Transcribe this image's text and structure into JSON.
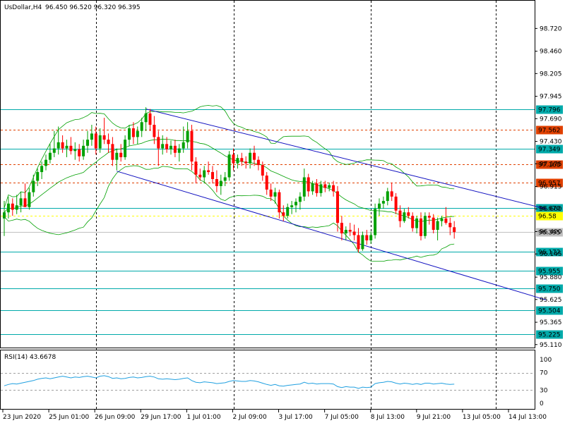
{
  "header": {
    "symbol": "UsDollar,H4",
    "ohlc": "96.450 96.520 96.320 96.395"
  },
  "rsi_header": "RSI(14) 43.6678",
  "colors": {
    "bull": "#00a000",
    "bear": "#ff0000",
    "hline": "#00aaaa",
    "hline_dashed": "#e04000",
    "channel": "#1010c0",
    "bollinger": "#00a000",
    "rsi_line": "#20a0e0",
    "current_price": "#ffff00"
  },
  "chart_data": [
    {
      "type": "candlestick",
      "title": "UsDollar,H4",
      "ylim": [
        95.1,
        98.9
      ],
      "y_ticks": [
        "98.720",
        "98.460",
        "98.205",
        "97.945",
        "97.690",
        "97.430",
        "97.175",
        "96.915",
        "96.660",
        "96.400",
        "96.145",
        "95.880",
        "95.625",
        "95.365",
        "95.110"
      ],
      "x_tick_labels": [
        "23 Jun 2020",
        "25 Jun 01:00",
        "26 Jun 09:00",
        "29 Jun 17:00",
        "1 Jul 01:00",
        "2 Jul 09:00",
        "3 Jul 17:00",
        "7 Jul 05:00",
        "8 Jul 13:00",
        "9 Jul 21:00",
        "13 Jul 05:00",
        "14 Jul 13:00"
      ],
      "session_separators_at_index": [
        22,
        55,
        88,
        118
      ],
      "candles": [
        {
          "o": 96.55,
          "h": 96.75,
          "l": 96.35,
          "c": 96.62
        },
        {
          "o": 96.62,
          "h": 96.8,
          "l": 96.55,
          "c": 96.72
        },
        {
          "o": 96.72,
          "h": 96.78,
          "l": 96.58,
          "c": 96.65
        },
        {
          "o": 96.65,
          "h": 96.82,
          "l": 96.6,
          "c": 96.7
        },
        {
          "o": 96.7,
          "h": 96.85,
          "l": 96.62,
          "c": 96.78
        },
        {
          "o": 96.78,
          "h": 96.95,
          "l": 96.7,
          "c": 96.68
        },
        {
          "o": 96.68,
          "h": 96.9,
          "l": 96.65,
          "c": 96.85
        },
        {
          "o": 96.85,
          "h": 97.05,
          "l": 96.8,
          "c": 96.98
        },
        {
          "o": 96.98,
          "h": 97.12,
          "l": 96.92,
          "c": 97.08
        },
        {
          "o": 97.08,
          "h": 97.2,
          "l": 97.0,
          "c": 97.15
        },
        {
          "o": 97.15,
          "h": 97.28,
          "l": 97.1,
          "c": 97.22
        },
        {
          "o": 97.22,
          "h": 97.4,
          "l": 97.18,
          "c": 97.3
        },
        {
          "o": 97.3,
          "h": 97.55,
          "l": 97.25,
          "c": 97.35
        },
        {
          "o": 97.35,
          "h": 97.6,
          "l": 97.28,
          "c": 97.42
        },
        {
          "o": 97.42,
          "h": 97.5,
          "l": 97.3,
          "c": 97.35
        },
        {
          "o": 97.35,
          "h": 97.45,
          "l": 97.25,
          "c": 97.38
        },
        {
          "o": 97.38,
          "h": 97.48,
          "l": 97.28,
          "c": 97.32
        },
        {
          "o": 97.32,
          "h": 97.42,
          "l": 97.22,
          "c": 97.34
        },
        {
          "o": 97.34,
          "h": 97.4,
          "l": 97.2,
          "c": 97.26
        },
        {
          "o": 97.26,
          "h": 97.45,
          "l": 97.22,
          "c": 97.38
        },
        {
          "o": 97.38,
          "h": 97.55,
          "l": 97.3,
          "c": 97.45
        },
        {
          "o": 97.45,
          "h": 97.62,
          "l": 97.38,
          "c": 97.52
        },
        {
          "o": 97.52,
          "h": 97.6,
          "l": 97.28,
          "c": 97.35
        },
        {
          "o": 97.35,
          "h": 97.58,
          "l": 97.3,
          "c": 97.5
        },
        {
          "o": 97.5,
          "h": 97.7,
          "l": 97.4,
          "c": 97.45
        },
        {
          "o": 97.45,
          "h": 97.52,
          "l": 97.3,
          "c": 97.4
        },
        {
          "o": 97.4,
          "h": 97.48,
          "l": 97.15,
          "c": 97.22
        },
        {
          "o": 97.22,
          "h": 97.35,
          "l": 97.1,
          "c": 97.3
        },
        {
          "o": 97.3,
          "h": 97.4,
          "l": 97.2,
          "c": 97.25
        },
        {
          "o": 97.25,
          "h": 97.5,
          "l": 97.22,
          "c": 97.45
        },
        {
          "o": 97.45,
          "h": 97.62,
          "l": 97.38,
          "c": 97.58
        },
        {
          "o": 97.58,
          "h": 97.65,
          "l": 97.4,
          "c": 97.48
        },
        {
          "o": 97.48,
          "h": 97.6,
          "l": 97.4,
          "c": 97.55
        },
        {
          "o": 97.55,
          "h": 97.7,
          "l": 97.48,
          "c": 97.65
        },
        {
          "o": 97.65,
          "h": 97.82,
          "l": 97.55,
          "c": 97.75
        },
        {
          "o": 97.75,
          "h": 97.8,
          "l": 97.55,
          "c": 97.62
        },
        {
          "o": 97.62,
          "h": 97.72,
          "l": 97.4,
          "c": 97.48
        },
        {
          "o": 97.48,
          "h": 97.55,
          "l": 97.15,
          "c": 97.35
        },
        {
          "o": 97.35,
          "h": 97.5,
          "l": 97.28,
          "c": 97.4
        },
        {
          "o": 97.4,
          "h": 97.48,
          "l": 97.3,
          "c": 97.34
        },
        {
          "o": 97.34,
          "h": 97.44,
          "l": 97.28,
          "c": 97.38
        },
        {
          "o": 97.38,
          "h": 97.45,
          "l": 97.25,
          "c": 97.3
        },
        {
          "o": 97.3,
          "h": 97.4,
          "l": 97.2,
          "c": 97.35
        },
        {
          "o": 97.35,
          "h": 97.6,
          "l": 97.3,
          "c": 97.42
        },
        {
          "o": 97.42,
          "h": 97.65,
          "l": 97.35,
          "c": 97.55
        },
        {
          "o": 97.55,
          "h": 97.62,
          "l": 97.1,
          "c": 97.2
        },
        {
          "o": 97.2,
          "h": 97.25,
          "l": 96.95,
          "c": 97.05
        },
        {
          "o": 97.05,
          "h": 97.12,
          "l": 96.98,
          "c": 97.02
        },
        {
          "o": 97.02,
          "h": 97.15,
          "l": 96.95,
          "c": 97.1
        },
        {
          "o": 97.1,
          "h": 97.2,
          "l": 97.05,
          "c": 97.08
        },
        {
          "o": 97.08,
          "h": 97.15,
          "l": 96.95,
          "c": 97.0
        },
        {
          "o": 97.0,
          "h": 97.1,
          "l": 96.85,
          "c": 96.92
        },
        {
          "o": 96.92,
          "h": 97.05,
          "l": 96.82,
          "c": 96.98
        },
        {
          "o": 96.98,
          "h": 97.08,
          "l": 96.92,
          "c": 97.02
        },
        {
          "o": 97.02,
          "h": 97.32,
          "l": 96.98,
          "c": 97.28
        },
        {
          "o": 97.28,
          "h": 97.35,
          "l": 97.1,
          "c": 97.18
        },
        {
          "o": 97.18,
          "h": 97.28,
          "l": 97.12,
          "c": 97.24
        },
        {
          "o": 97.24,
          "h": 97.3,
          "l": 97.15,
          "c": 97.2
        },
        {
          "o": 97.2,
          "h": 97.26,
          "l": 97.12,
          "c": 97.18
        },
        {
          "o": 97.18,
          "h": 97.35,
          "l": 97.12,
          "c": 97.3
        },
        {
          "o": 97.3,
          "h": 97.38,
          "l": 97.15,
          "c": 97.22
        },
        {
          "o": 97.22,
          "h": 97.26,
          "l": 97.1,
          "c": 97.16
        },
        {
          "o": 97.16,
          "h": 97.2,
          "l": 96.98,
          "c": 97.04
        },
        {
          "o": 97.04,
          "h": 97.08,
          "l": 96.82,
          "c": 96.88
        },
        {
          "o": 96.88,
          "h": 96.95,
          "l": 96.75,
          "c": 96.8
        },
        {
          "o": 96.8,
          "h": 96.9,
          "l": 96.72,
          "c": 96.85
        },
        {
          "o": 96.85,
          "h": 96.88,
          "l": 96.55,
          "c": 96.62
        },
        {
          "o": 96.62,
          "h": 96.7,
          "l": 96.52,
          "c": 96.58
        },
        {
          "o": 96.58,
          "h": 96.72,
          "l": 96.55,
          "c": 96.68
        },
        {
          "o": 96.68,
          "h": 96.75,
          "l": 96.6,
          "c": 96.7
        },
        {
          "o": 96.7,
          "h": 96.78,
          "l": 96.62,
          "c": 96.74
        },
        {
          "o": 96.74,
          "h": 96.85,
          "l": 96.65,
          "c": 96.8
        },
        {
          "o": 96.8,
          "h": 97.12,
          "l": 96.75,
          "c": 97.02
        },
        {
          "o": 97.02,
          "h": 97.06,
          "l": 96.8,
          "c": 96.86
        },
        {
          "o": 96.86,
          "h": 96.98,
          "l": 96.82,
          "c": 96.95
        },
        {
          "o": 96.95,
          "h": 97.0,
          "l": 96.8,
          "c": 96.84
        },
        {
          "o": 96.84,
          "h": 96.98,
          "l": 96.8,
          "c": 96.94
        },
        {
          "o": 96.94,
          "h": 96.98,
          "l": 96.85,
          "c": 96.9
        },
        {
          "o": 96.9,
          "h": 96.96,
          "l": 96.86,
          "c": 96.93
        },
        {
          "o": 96.93,
          "h": 96.98,
          "l": 96.8,
          "c": 96.86
        },
        {
          "o": 96.86,
          "h": 96.92,
          "l": 96.4,
          "c": 96.5
        },
        {
          "o": 96.5,
          "h": 96.58,
          "l": 96.3,
          "c": 96.38
        },
        {
          "o": 96.38,
          "h": 96.46,
          "l": 96.3,
          "c": 96.42
        },
        {
          "o": 96.42,
          "h": 96.5,
          "l": 96.35,
          "c": 96.4
        },
        {
          "o": 96.4,
          "h": 96.48,
          "l": 96.3,
          "c": 96.36
        },
        {
          "o": 96.36,
          "h": 96.44,
          "l": 96.16,
          "c": 96.2
        },
        {
          "o": 96.2,
          "h": 96.4,
          "l": 96.18,
          "c": 96.36
        },
        {
          "o": 96.36,
          "h": 96.42,
          "l": 96.25,
          "c": 96.3
        },
        {
          "o": 96.3,
          "h": 96.4,
          "l": 96.26,
          "c": 96.36
        },
        {
          "o": 96.36,
          "h": 96.72,
          "l": 96.32,
          "c": 96.66
        },
        {
          "o": 96.66,
          "h": 96.78,
          "l": 96.58,
          "c": 96.72
        },
        {
          "o": 96.72,
          "h": 96.8,
          "l": 96.66,
          "c": 96.75
        },
        {
          "o": 96.75,
          "h": 96.9,
          "l": 96.7,
          "c": 96.86
        },
        {
          "o": 96.86,
          "h": 96.96,
          "l": 96.75,
          "c": 96.8
        },
        {
          "o": 96.8,
          "h": 96.84,
          "l": 96.6,
          "c": 96.64
        },
        {
          "o": 96.64,
          "h": 96.7,
          "l": 96.45,
          "c": 96.52
        },
        {
          "o": 96.52,
          "h": 96.66,
          "l": 96.5,
          "c": 96.62
        },
        {
          "o": 96.62,
          "h": 96.68,
          "l": 96.55,
          "c": 96.58
        },
        {
          "o": 96.58,
          "h": 96.62,
          "l": 96.4,
          "c": 96.44
        },
        {
          "o": 96.44,
          "h": 96.58,
          "l": 96.38,
          "c": 96.55
        },
        {
          "o": 96.55,
          "h": 96.62,
          "l": 96.3,
          "c": 96.35
        },
        {
          "o": 96.35,
          "h": 96.62,
          "l": 96.32,
          "c": 96.58
        },
        {
          "o": 96.58,
          "h": 96.62,
          "l": 96.48,
          "c": 96.56
        },
        {
          "o": 96.56,
          "h": 96.6,
          "l": 96.38,
          "c": 96.42
        },
        {
          "o": 96.42,
          "h": 96.56,
          "l": 96.3,
          "c": 96.52
        },
        {
          "o": 96.52,
          "h": 96.58,
          "l": 96.46,
          "c": 96.55
        },
        {
          "o": 96.55,
          "h": 96.68,
          "l": 96.48,
          "c": 96.5
        },
        {
          "o": 96.5,
          "h": 96.56,
          "l": 96.36,
          "c": 96.45
        },
        {
          "o": 96.45,
          "h": 96.52,
          "l": 96.32,
          "c": 96.395
        }
      ]
    },
    {
      "type": "line",
      "title": "RSI(14) 43.6678",
      "ylim": [
        0,
        100
      ],
      "y_ticks": [
        "100",
        "70",
        "30",
        "0"
      ],
      "levels": [
        70,
        30
      ],
      "values": [
        40,
        43,
        45,
        44,
        46,
        48,
        50,
        52,
        55,
        57,
        58,
        56,
        58,
        60,
        62,
        60,
        58,
        60,
        59,
        61,
        62,
        60,
        58,
        62,
        63,
        61,
        57,
        58,
        56,
        57,
        59,
        60,
        58,
        59,
        61,
        62,
        60,
        56,
        55,
        56,
        55,
        54,
        55,
        57,
        58,
        52,
        48,
        47,
        49,
        48,
        47,
        45,
        46,
        47,
        50,
        52,
        51,
        50,
        50,
        52,
        51,
        49,
        46,
        43,
        41,
        43,
        40,
        39,
        41,
        42,
        43,
        44,
        48,
        45,
        46,
        44,
        45,
        45,
        45,
        44,
        38,
        36,
        38,
        37,
        37,
        34,
        37,
        36,
        37,
        45,
        47,
        48,
        50,
        49,
        46,
        44,
        46,
        45,
        43,
        45,
        43,
        46,
        46,
        44,
        45,
        46,
        44,
        43,
        43.67
      ]
    }
  ],
  "levels": [
    {
      "value": 97.796,
      "label": "97.796",
      "style": "solid"
    },
    {
      "value": 97.562,
      "label": "97.562",
      "style": "dashed"
    },
    {
      "value": 97.349,
      "label": "97.349",
      "style": "solid"
    },
    {
      "value": 97.168,
      "label": "97.168",
      "style": "dashed"
    },
    {
      "value": 96.957,
      "label": "96.957",
      "style": "dashed"
    },
    {
      "value": 96.67,
      "label": "96.670",
      "style": "solid"
    },
    {
      "value": 96.172,
      "label": "96.172",
      "style": "solid"
    },
    {
      "value": 95.955,
      "label": "95.955",
      "style": "solid"
    },
    {
      "value": 95.75,
      "label": "95.750",
      "style": "solid"
    },
    {
      "value": 95.504,
      "label": "95.504",
      "style": "solid"
    },
    {
      "value": 95.225,
      "label": "95.225",
      "style": "solid"
    }
  ],
  "current_price": {
    "value": 96.395,
    "label": "96.395"
  },
  "yellow_marker": {
    "value": 96.58,
    "label": "96.58"
  },
  "channel": {
    "upper": [
      [
        34,
        97.8
      ],
      [
        130,
        96.66
      ]
    ],
    "lower": [
      [
        27,
        97.09
      ],
      [
        130,
        95.62
      ]
    ]
  }
}
